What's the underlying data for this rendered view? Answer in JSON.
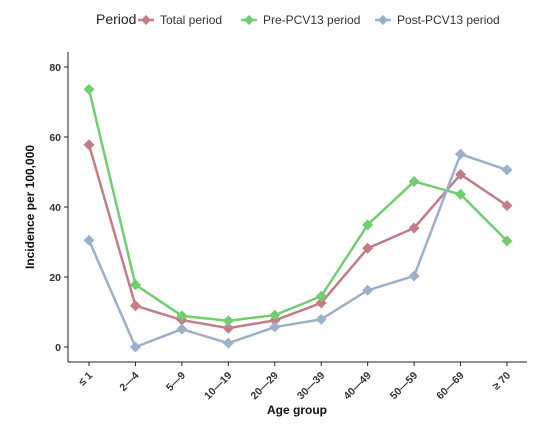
{
  "chart_data": {
    "type": "line",
    "legend_title": "Period",
    "legend_position": "top",
    "xlabel": "Age group",
    "ylabel": "Incidence per 100,000",
    "ylim": [
      0,
      80
    ],
    "yticks": [
      0,
      20,
      40,
      60,
      80
    ],
    "grid": false,
    "categories": [
      "≤ 1",
      "2—4",
      "5—9",
      "10—19",
      "20—29",
      "30—39",
      "40—49",
      "50—59",
      "60—69",
      "≥ 70"
    ],
    "series": [
      {
        "name": "Total period",
        "color": "#c47c86",
        "values": [
          57.8,
          11.8,
          7.7,
          5.4,
          7.6,
          12.6,
          28.2,
          34.0,
          49.3,
          40.4
        ]
      },
      {
        "name": "Pre-PCV13 period",
        "color": "#72cd6f",
        "values": [
          73.6,
          17.8,
          8.9,
          7.5,
          9.1,
          14.5,
          34.9,
          47.3,
          43.6,
          30.3
        ]
      },
      {
        "name": "Post-PCV13 period",
        "color": "#9cb0c9",
        "values": [
          30.5,
          0.0,
          5.1,
          1.1,
          5.7,
          7.9,
          16.2,
          20.3,
          55.1,
          50.6
        ]
      }
    ]
  }
}
